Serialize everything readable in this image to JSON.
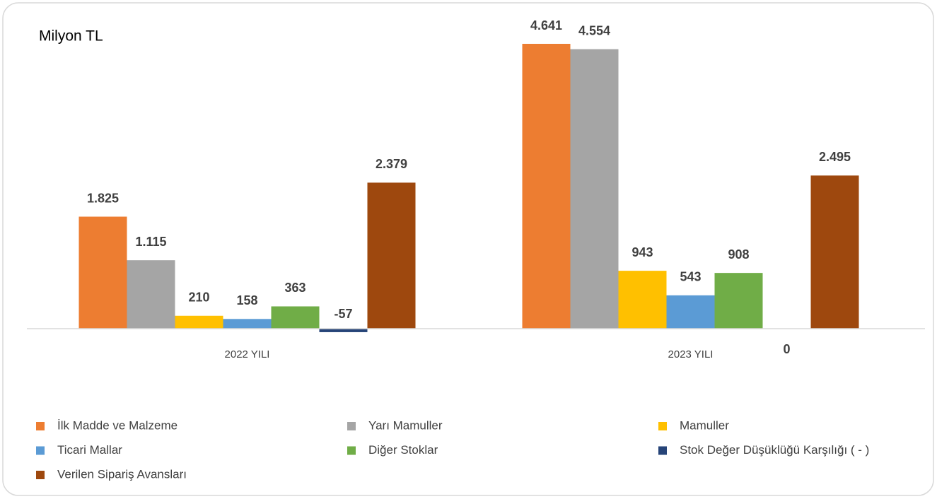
{
  "chart_data": {
    "type": "bar",
    "title": "Milyon TL",
    "categories": [
      "2022 YILI",
      "2023 YILI"
    ],
    "series": [
      {
        "name": "İlk Madde ve Malzeme",
        "color": "#ED7D31",
        "values": [
          1825,
          4641
        ],
        "value_labels": [
          "1.825",
          "4.641"
        ]
      },
      {
        "name": "Yarı Mamuller",
        "color": "#A5A5A5",
        "values": [
          1115,
          4554
        ],
        "value_labels": [
          "1.115",
          "4.554"
        ]
      },
      {
        "name": "Mamuller",
        "color": "#FFC000",
        "values": [
          210,
          943
        ],
        "value_labels": [
          "210",
          "943"
        ]
      },
      {
        "name": "Ticari Mallar",
        "color": "#5B9BD5",
        "values": [
          158,
          543
        ],
        "value_labels": [
          "158",
          "543"
        ]
      },
      {
        "name": "Diğer Stoklar",
        "color": "#70AD47",
        "values": [
          363,
          908
        ],
        "value_labels": [
          "363",
          "908"
        ]
      },
      {
        "name": "Stok Değer Düşüklüğü Karşılığı ( - )",
        "color": "#264478",
        "values": [
          -57,
          0
        ],
        "value_labels": [
          "-57",
          "0"
        ]
      },
      {
        "name": "Verilen Sipariş Avansları",
        "color": "#9E480E",
        "values": [
          2379,
          2495
        ],
        "value_labels": [
          "2.379",
          "2.495"
        ]
      }
    ]
  }
}
